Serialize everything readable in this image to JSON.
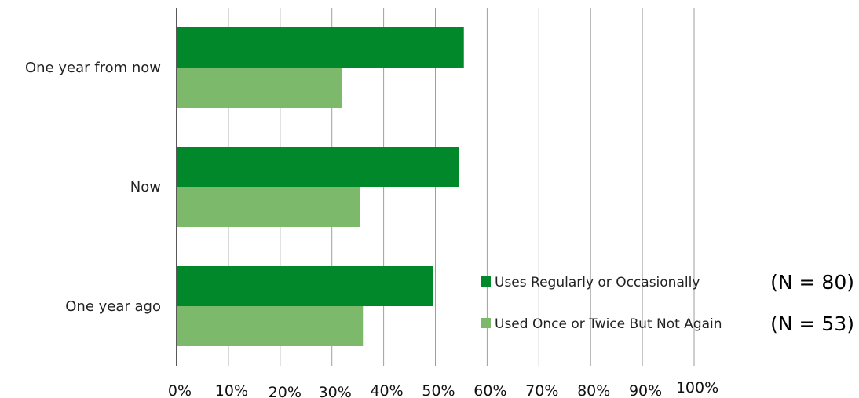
{
  "chart_data": {
    "type": "bar",
    "orientation": "horizontal",
    "categories": [
      "One year from now",
      "Now",
      "One year ago"
    ],
    "series": [
      {
        "name": "Uses Regularly or Occasionally",
        "n_label": "(N = 80)",
        "color": "#00882b",
        "values": [
          55.5,
          54.5,
          49.5
        ]
      },
      {
        "name": "Used Once or Twice But Not Again",
        "n_label": "(N = 53)",
        "color": "#7db96b",
        "values": [
          32,
          35.5,
          36
        ]
      }
    ],
    "xlim": [
      0,
      100
    ],
    "x_ticks": [
      "0%",
      "10%",
      "20%",
      "30%",
      "40%",
      "50%",
      "60%",
      "70%",
      "80%",
      "90%",
      "100%"
    ],
    "grid": true,
    "legend_position": "bottom-right"
  }
}
